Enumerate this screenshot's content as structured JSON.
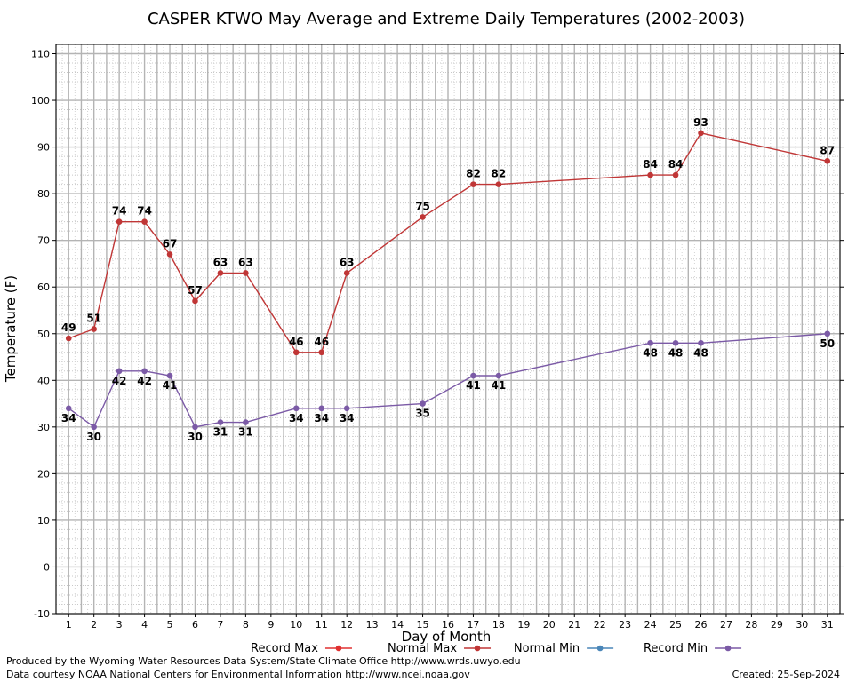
{
  "chart_data": {
    "type": "line",
    "title": "CASPER KTWO May Average and Extreme Daily Temperatures (2002-2003)",
    "xlabel": "Day of Month",
    "ylabel": "Temperature (F)",
    "xlim": [
      0.5,
      31.5
    ],
    "ylim": [
      -10,
      112
    ],
    "x_ticks": [
      1,
      2,
      3,
      4,
      5,
      6,
      7,
      8,
      9,
      10,
      11,
      12,
      13,
      14,
      15,
      16,
      17,
      18,
      19,
      20,
      21,
      22,
      23,
      24,
      25,
      26,
      27,
      28,
      29,
      30,
      31
    ],
    "y_ticks": [
      -10,
      0,
      10,
      20,
      30,
      40,
      50,
      60,
      70,
      80,
      90,
      100,
      110
    ],
    "grid": true,
    "legend_position": "bottom",
    "series": [
      {
        "name": "Record Max",
        "color": "#c03636",
        "label_position": "above",
        "points": [
          {
            "x": 1,
            "y": 49
          },
          {
            "x": 2,
            "y": 51
          },
          {
            "x": 3,
            "y": 74
          },
          {
            "x": 4,
            "y": 74
          },
          {
            "x": 5,
            "y": 67
          },
          {
            "x": 6,
            "y": 57
          },
          {
            "x": 7,
            "y": 63
          },
          {
            "x": 8,
            "y": 63
          },
          {
            "x": 10,
            "y": 46
          },
          {
            "x": 11,
            "y": 46
          },
          {
            "x": 12,
            "y": 63
          },
          {
            "x": 15,
            "y": 75
          },
          {
            "x": 17,
            "y": 82
          },
          {
            "x": 18,
            "y": 82
          },
          {
            "x": 24,
            "y": 84
          },
          {
            "x": 25,
            "y": 84
          },
          {
            "x": 26,
            "y": 93
          },
          {
            "x": 31,
            "y": 87
          }
        ]
      },
      {
        "name": "Record Min",
        "color": "#7b5aa6",
        "label_position": "below",
        "points": [
          {
            "x": 1,
            "y": 34
          },
          {
            "x": 2,
            "y": 30
          },
          {
            "x": 3,
            "y": 42
          },
          {
            "x": 4,
            "y": 42
          },
          {
            "x": 5,
            "y": 41
          },
          {
            "x": 6,
            "y": 30
          },
          {
            "x": 7,
            "y": 31
          },
          {
            "x": 8,
            "y": 31
          },
          {
            "x": 10,
            "y": 34
          },
          {
            "x": 11,
            "y": 34
          },
          {
            "x": 12,
            "y": 34
          },
          {
            "x": 15,
            "y": 35
          },
          {
            "x": 17,
            "y": 41
          },
          {
            "x": 18,
            "y": 41
          },
          {
            "x": 24,
            "y": 48
          },
          {
            "x": 25,
            "y": 48
          },
          {
            "x": 26,
            "y": 48
          },
          {
            "x": 31,
            "y": 50
          }
        ]
      }
    ],
    "legend": [
      {
        "label": "Record Max",
        "color": "#e03030"
      },
      {
        "label": "Normal Max",
        "color": "#c03636"
      },
      {
        "label": "Normal Min",
        "color": "#4a86b8"
      },
      {
        "label": "Record Min",
        "color": "#7b5aa6"
      }
    ]
  },
  "footer": {
    "produced_by": "Produced by the Wyoming Water Resources Data System/State Climate Office http://www.wrds.uwyo.edu",
    "courtesy": "Data courtesy NOAA National Centers for Environmental Information http://www.ncei.noaa.gov",
    "created": "Created:  25-Sep-2024"
  }
}
